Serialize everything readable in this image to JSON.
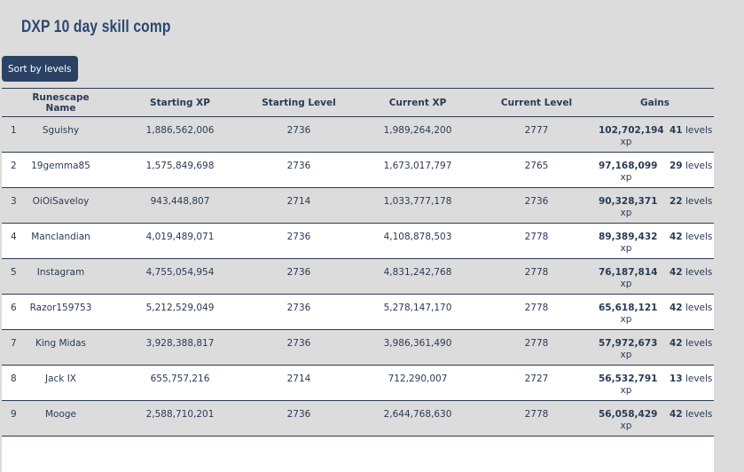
{
  "title": "DXP 10 day skill comp",
  "sort_button": "Sort by levels",
  "columns": [
    "",
    "Runescape Name",
    "Starting XP",
    "Starting Level",
    "Current XP",
    "Current Level",
    "Gains"
  ],
  "xp_unit": "xp",
  "levels_unit": "levels",
  "rows": [
    {
      "rank": "1",
      "name": "Sguishy",
      "start_xp": "1,886,562,006",
      "start_level": "2736",
      "current_xp": "1,989,264,200",
      "current_level": "2777",
      "gain_xp": "102,702,194",
      "gain_levels": "41"
    },
    {
      "rank": "2",
      "name": "19gemma85",
      "start_xp": "1,575,849,698",
      "start_level": "2736",
      "current_xp": "1,673,017,797",
      "current_level": "2765",
      "gain_xp": "97,168,099",
      "gain_levels": "29"
    },
    {
      "rank": "3",
      "name": "OiOiSaveloy",
      "start_xp": "943,448,807",
      "start_level": "2714",
      "current_xp": "1,033,777,178",
      "current_level": "2736",
      "gain_xp": "90,328,371",
      "gain_levels": "22"
    },
    {
      "rank": "4",
      "name": "Manclandian",
      "start_xp": "4,019,489,071",
      "start_level": "2736",
      "current_xp": "4,108,878,503",
      "current_level": "2778",
      "gain_xp": "89,389,432",
      "gain_levels": "42"
    },
    {
      "rank": "5",
      "name": "Instagram",
      "start_xp": "4,755,054,954",
      "start_level": "2736",
      "current_xp": "4,831,242,768",
      "current_level": "2778",
      "gain_xp": "76,187,814",
      "gain_levels": "42"
    },
    {
      "rank": "6",
      "name": "Razor159753",
      "start_xp": "5,212,529,049",
      "start_level": "2736",
      "current_xp": "5,278,147,170",
      "current_level": "2778",
      "gain_xp": "65,618,121",
      "gain_levels": "42"
    },
    {
      "rank": "7",
      "name": "King Midas",
      "start_xp": "3,928,388,817",
      "start_level": "2736",
      "current_xp": "3,986,361,490",
      "current_level": "2778",
      "gain_xp": "57,972,673",
      "gain_levels": "42"
    },
    {
      "rank": "8",
      "name": "Jack IX",
      "start_xp": "655,757,216",
      "start_level": "2714",
      "current_xp": "712,290,007",
      "current_level": "2727",
      "gain_xp": "56,532,791",
      "gain_levels": "13"
    },
    {
      "rank": "9",
      "name": "Mooge",
      "start_xp": "2,588,710,201",
      "start_level": "2736",
      "current_xp": "2,644,768,630",
      "current_level": "2778",
      "gain_xp": "56,058,429",
      "gain_levels": "42"
    }
  ]
}
